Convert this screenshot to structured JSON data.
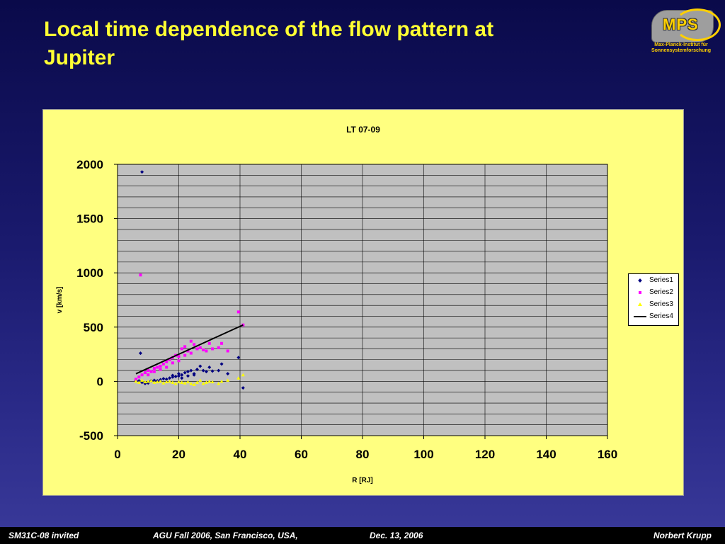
{
  "slide": {
    "title_line1": "Local time dependence of the flow pattern at",
    "title_line2": "Jupiter"
  },
  "logo": {
    "text": "MPS",
    "org_line1": "Max-Planck-Institut für",
    "org_line2": "Sonnensystemforschung"
  },
  "footer": {
    "session": "SM31C-08 invited",
    "meeting": "AGU Fall 2006, San Francisco, USA,",
    "date": "Dec. 13, 2006",
    "author": "Norbert Krupp"
  },
  "colors": {
    "title": "#ffff33",
    "plot_area": "#c0c0c0",
    "chart_bg": "#ffff80",
    "series1": "#000080",
    "series2": "#ff00ff",
    "series3": "#ffff00",
    "series4": "#000000"
  },
  "chart_data": {
    "type": "scatter",
    "title": "LT 07-09",
    "xlabel": "R [RJ]",
    "ylabel": "v [km/s]",
    "xlim": [
      0,
      160
    ],
    "ylim": [
      -500,
      2000
    ],
    "xticks": [
      0,
      20,
      40,
      60,
      80,
      100,
      120,
      140,
      160
    ],
    "yticks": [
      -500,
      0,
      500,
      1000,
      1500,
      2000
    ],
    "grid": true,
    "legend_position": "right",
    "series": [
      {
        "name": "Series1",
        "marker": "diamond",
        "points": [
          [
            8,
            1930
          ],
          [
            7.5,
            260
          ],
          [
            6,
            10
          ],
          [
            7,
            5
          ],
          [
            8,
            -10
          ],
          [
            9,
            -20
          ],
          [
            10,
            -15
          ],
          [
            11,
            5
          ],
          [
            12,
            10
          ],
          [
            13,
            5
          ],
          [
            14,
            15
          ],
          [
            15,
            25
          ],
          [
            16,
            20
          ],
          [
            17,
            30
          ],
          [
            18,
            40
          ],
          [
            19,
            45
          ],
          [
            20,
            50
          ],
          [
            21,
            60
          ],
          [
            22,
            80
          ],
          [
            23,
            90
          ],
          [
            24,
            100
          ],
          [
            25,
            70
          ],
          [
            26,
            110
          ],
          [
            27,
            140
          ],
          [
            28,
            100
          ],
          [
            29,
            90
          ],
          [
            30,
            130
          ],
          [
            31,
            95
          ],
          [
            33,
            100
          ],
          [
            34,
            160
          ],
          [
            36,
            70
          ],
          [
            39.5,
            220
          ],
          [
            41,
            -60
          ],
          [
            18,
            55
          ],
          [
            20,
            70
          ],
          [
            21,
            30
          ],
          [
            23,
            50
          ],
          [
            25,
            60
          ]
        ]
      },
      {
        "name": "Series2",
        "marker": "square",
        "points": [
          [
            7.5,
            980
          ],
          [
            6,
            20
          ],
          [
            7,
            40
          ],
          [
            8,
            60
          ],
          [
            9,
            80
          ],
          [
            10,
            100
          ],
          [
            11,
            90
          ],
          [
            12,
            120
          ],
          [
            13,
            130
          ],
          [
            14,
            140
          ],
          [
            15,
            160
          ],
          [
            16,
            180
          ],
          [
            17,
            200
          ],
          [
            18,
            220
          ],
          [
            19,
            240
          ],
          [
            20,
            230
          ],
          [
            21,
            300
          ],
          [
            22,
            320
          ],
          [
            23,
            280
          ],
          [
            24,
            370
          ],
          [
            25,
            340
          ],
          [
            26,
            300
          ],
          [
            27,
            310
          ],
          [
            28,
            290
          ],
          [
            29,
            280
          ],
          [
            30,
            350
          ],
          [
            31,
            300
          ],
          [
            33,
            310
          ],
          [
            34,
            350
          ],
          [
            36,
            280
          ],
          [
            39.5,
            640
          ],
          [
            41,
            520
          ],
          [
            10,
            60
          ],
          [
            12,
            90
          ],
          [
            14,
            110
          ],
          [
            16,
            130
          ],
          [
            18,
            170
          ],
          [
            20,
            190
          ],
          [
            22,
            240
          ],
          [
            24,
            260
          ]
        ]
      },
      {
        "name": "Series3",
        "marker": "triangle",
        "points": [
          [
            6,
            0
          ],
          [
            7,
            -10
          ],
          [
            8,
            10
          ],
          [
            9,
            -5
          ],
          [
            10,
            0
          ],
          [
            11,
            5
          ],
          [
            12,
            -10
          ],
          [
            13,
            -5
          ],
          [
            14,
            0
          ],
          [
            15,
            -15
          ],
          [
            16,
            -5
          ],
          [
            17,
            0
          ],
          [
            18,
            -10
          ],
          [
            19,
            -20
          ],
          [
            20,
            -5
          ],
          [
            21,
            -10
          ],
          [
            22,
            -15
          ],
          [
            23,
            -5
          ],
          [
            24,
            -20
          ],
          [
            25,
            -30
          ],
          [
            26,
            -10
          ],
          [
            27,
            10
          ],
          [
            28,
            -20
          ],
          [
            29,
            -10
          ],
          [
            30,
            0
          ],
          [
            31,
            -5
          ],
          [
            33,
            -20
          ],
          [
            34,
            0
          ],
          [
            36,
            10
          ],
          [
            39.5,
            30
          ],
          [
            41,
            60
          ]
        ]
      },
      {
        "name": "Series4",
        "marker": "line",
        "points": [
          [
            6,
            70
          ],
          [
            41,
            520
          ]
        ]
      }
    ]
  }
}
